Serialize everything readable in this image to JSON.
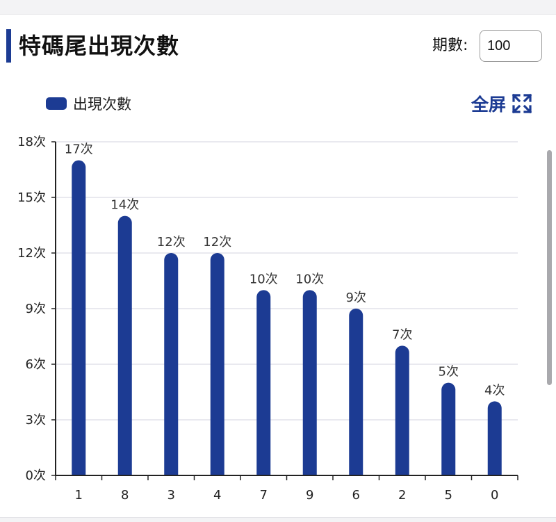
{
  "header": {
    "title": "特碼尾出現次數",
    "period_label": "期數:",
    "period_value": "100"
  },
  "legend": {
    "label": "出現次數"
  },
  "fullscreen": {
    "label": "全屏",
    "icon": "expand-icon"
  },
  "colors": {
    "accent": "#1c3b93",
    "grid": "#e2e2ea",
    "axis": "#222222"
  },
  "chart_data": {
    "type": "bar",
    "categories": [
      "1",
      "8",
      "3",
      "4",
      "7",
      "9",
      "6",
      "2",
      "5",
      "0"
    ],
    "series": [
      {
        "name": "出現次數",
        "values": [
          17,
          14,
          12,
          12,
          10,
          10,
          9,
          7,
          5,
          4
        ]
      }
    ],
    "value_suffix": "次",
    "data_labels": [
      "17次",
      "14次",
      "12次",
      "12次",
      "10次",
      "10次",
      "9次",
      "7次",
      "5次",
      "4次"
    ],
    "y_ticks": [
      0,
      3,
      6,
      9,
      12,
      15,
      18
    ],
    "y_tick_labels": [
      "0次",
      "3次",
      "6次",
      "9次",
      "12次",
      "15次",
      "18次"
    ],
    "ylim": [
      0,
      18
    ],
    "grid": true,
    "legend_position": "top-left"
  }
}
